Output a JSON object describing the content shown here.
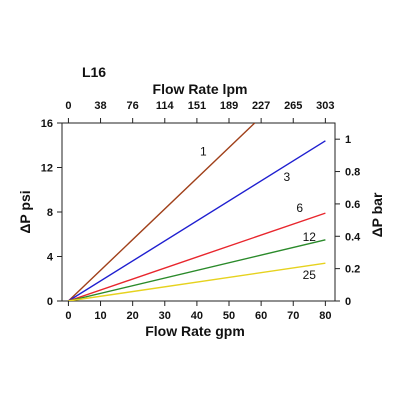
{
  "chart_data": {
    "type": "line",
    "title": "L16",
    "top_xlabel": "Flow Rate lpm",
    "xlabel": "Flow Rate gpm",
    "ylabel": "ΔP psi",
    "right_ylabel": "ΔP bar",
    "xlim": [
      -2,
      83
    ],
    "ylim": [
      0,
      16
    ],
    "x_ticks": [
      0,
      10,
      20,
      30,
      40,
      50,
      60,
      70,
      80
    ],
    "y_ticks": [
      0,
      4,
      8,
      12,
      16
    ],
    "top_ticks": [
      {
        "x": 0,
        "label": "0"
      },
      {
        "x": 10,
        "label": "38"
      },
      {
        "x": 20,
        "label": "76"
      },
      {
        "x": 30,
        "label": "114"
      },
      {
        "x": 40,
        "label": "151"
      },
      {
        "x": 50,
        "label": "189"
      },
      {
        "x": 60,
        "label": "227"
      },
      {
        "x": 70,
        "label": "265"
      },
      {
        "x": 80,
        "label": "303"
      }
    ],
    "right_ticks": [
      {
        "value": 0,
        "label": "0"
      },
      {
        "value": 0.2,
        "label": "0.2"
      },
      {
        "value": 0.4,
        "label": "0.4"
      },
      {
        "value": 0.6,
        "label": "0.6"
      },
      {
        "value": 0.8,
        "label": "0.8"
      },
      {
        "value": 1,
        "label": "1"
      }
    ],
    "right_ylim": [
      0,
      1.1
    ],
    "series": [
      {
        "name": "1",
        "color": "#a0401a",
        "x": [
          0,
          58
        ],
        "y": [
          0,
          16
        ],
        "label_at": [
          42,
          13.1
        ]
      },
      {
        "name": "3",
        "color": "#1f1fd0",
        "x": [
          0,
          80
        ],
        "y": [
          0,
          14.4
        ],
        "label_at": [
          68,
          10.8
        ]
      },
      {
        "name": "6",
        "color": "#e8262d",
        "x": [
          0,
          80
        ],
        "y": [
          0,
          7.9
        ],
        "label_at": [
          72,
          8.0
        ]
      },
      {
        "name": "12",
        "color": "#2a8a2a",
        "x": [
          0,
          80
        ],
        "y": [
          0,
          5.5
        ],
        "label_at": [
          75,
          5.4
        ]
      },
      {
        "name": "25",
        "color": "#e6d21e",
        "x": [
          0,
          80
        ],
        "y": [
          0,
          3.4
        ],
        "label_at": [
          75,
          2.0
        ]
      }
    ]
  }
}
